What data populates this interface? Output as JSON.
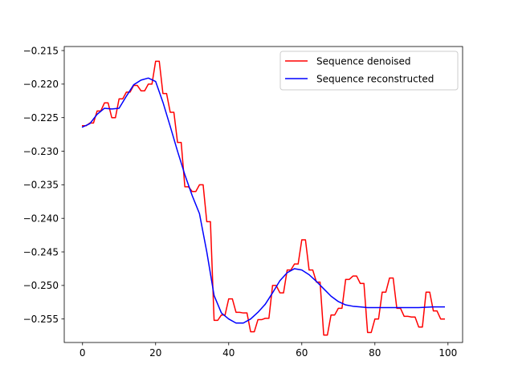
{
  "chart_data": {
    "type": "line",
    "title": "",
    "xlabel": "",
    "ylabel": "",
    "xlim": [
      -5,
      104
    ],
    "ylim": [
      -0.2585,
      -0.2144
    ],
    "xticks": [
      0,
      20,
      40,
      60,
      80,
      100
    ],
    "xtick_labels": [
      "0",
      "20",
      "40",
      "60",
      "80",
      "100"
    ],
    "yticks": [
      -0.215,
      -0.22,
      -0.225,
      -0.23,
      -0.235,
      -0.24,
      -0.245,
      -0.25,
      -0.255
    ],
    "ytick_labels": [
      "−0.215",
      "−0.220",
      "−0.225",
      "−0.230",
      "−0.235",
      "−0.240",
      "−0.245",
      "−0.250",
      "−0.255"
    ],
    "grid": false,
    "legend_position": "top-right",
    "series": [
      {
        "name": "Sequence denoised",
        "color": "#ff0000",
        "x": [
          0,
          1,
          2,
          3,
          4,
          5,
          6,
          7,
          8,
          9,
          10,
          11,
          12,
          13,
          14,
          15,
          16,
          17,
          18,
          19,
          20,
          21,
          22,
          23,
          24,
          25,
          26,
          27,
          28,
          29,
          30,
          31,
          32,
          33,
          34,
          35,
          36,
          37,
          38,
          39,
          40,
          41,
          42,
          43,
          44,
          45,
          46,
          47,
          48,
          49,
          50,
          51,
          52,
          53,
          54,
          55,
          56,
          57,
          58,
          59,
          60,
          61,
          62,
          63,
          64,
          65,
          66,
          67,
          68,
          69,
          70,
          71,
          72,
          73,
          74,
          75,
          76,
          77,
          78,
          79,
          80,
          81,
          82,
          83,
          84,
          85,
          86,
          87,
          88,
          89,
          90,
          91,
          92,
          93,
          94,
          95,
          96,
          97,
          98,
          99
        ],
        "y": [
          -0.2262,
          -0.2262,
          -0.2258,
          -0.2258,
          -0.224,
          -0.224,
          -0.2228,
          -0.2228,
          -0.225,
          -0.225,
          -0.2222,
          -0.2222,
          -0.2212,
          -0.2212,
          -0.2202,
          -0.2202,
          -0.221,
          -0.221,
          -0.22,
          -0.22,
          -0.2166,
          -0.2166,
          -0.2214,
          -0.2214,
          -0.2242,
          -0.2242,
          -0.2287,
          -0.2287,
          -0.2353,
          -0.2353,
          -0.236,
          -0.236,
          -0.235,
          -0.235,
          -0.2405,
          -0.2405,
          -0.2552,
          -0.2552,
          -0.2544,
          -0.2544,
          -0.252,
          -0.252,
          -0.254,
          -0.254,
          -0.2541,
          -0.2541,
          -0.2569,
          -0.2569,
          -0.2551,
          -0.2551,
          -0.2549,
          -0.2549,
          -0.25,
          -0.25,
          -0.2511,
          -0.2511,
          -0.2477,
          -0.2477,
          -0.2468,
          -0.2468,
          -0.2432,
          -0.2432,
          -0.2477,
          -0.2477,
          -0.2495,
          -0.2495,
          -0.2574,
          -0.2574,
          -0.2544,
          -0.2544,
          -0.2534,
          -0.2534,
          -0.2491,
          -0.2491,
          -0.2486,
          -0.2486,
          -0.2497,
          -0.2497,
          -0.257,
          -0.257,
          -0.255,
          -0.255,
          -0.251,
          -0.251,
          -0.2489,
          -0.2489,
          -0.2534,
          -0.2534,
          -0.2546,
          -0.2546,
          -0.2547,
          -0.2547,
          -0.2562,
          -0.2562,
          -0.251,
          -0.251,
          -0.2538,
          -0.2538,
          -0.255,
          -0.255
        ]
      },
      {
        "name": "Sequence reconstructed",
        "color": "#0000ff",
        "x": [
          0,
          2,
          4,
          6,
          8,
          10,
          12,
          14,
          16,
          18,
          20,
          22,
          24,
          26,
          28,
          30,
          32,
          34,
          36,
          38,
          40,
          42,
          44,
          46,
          48,
          50,
          52,
          54,
          56,
          58,
          60,
          62,
          64,
          66,
          68,
          70,
          72,
          74,
          76,
          78,
          80,
          84,
          88,
          92,
          96,
          99
        ],
        "y": [
          -0.2264,
          -0.2259,
          -0.2245,
          -0.2236,
          -0.2237,
          -0.2236,
          -0.2218,
          -0.2201,
          -0.2194,
          -0.2191,
          -0.2196,
          -0.2227,
          -0.2263,
          -0.23,
          -0.2335,
          -0.2366,
          -0.2393,
          -0.245,
          -0.2515,
          -0.2541,
          -0.255,
          -0.2556,
          -0.2556,
          -0.255,
          -0.254,
          -0.2528,
          -0.2511,
          -0.2493,
          -0.2481,
          -0.2475,
          -0.2477,
          -0.2484,
          -0.2494,
          -0.2505,
          -0.2516,
          -0.2524,
          -0.2529,
          -0.2531,
          -0.2532,
          -0.2533,
          -0.2533,
          -0.2533,
          -0.2533,
          -0.2533,
          -0.2532,
          -0.2532
        ]
      }
    ]
  }
}
